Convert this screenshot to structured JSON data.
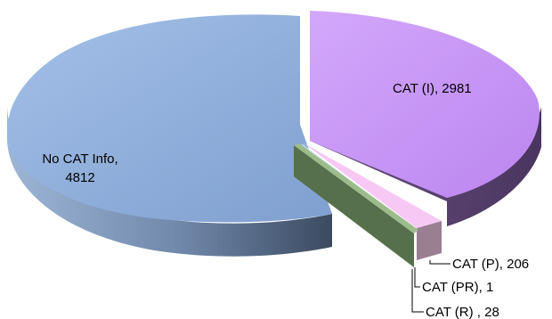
{
  "chart_data": {
    "type": "pie",
    "style": "3d-exploded",
    "title": "",
    "legend": "none",
    "slices": [
      {
        "label": "CAT (I)",
        "value": 2981,
        "color": "#c895f6",
        "label_text": "CAT (I), 2981"
      },
      {
        "label": "CAT (P)",
        "value": 206,
        "color": "#f9c6f7",
        "label_text": "CAT (P), 206"
      },
      {
        "label": "CAT (PR)",
        "value": 1,
        "color": "#bde0f0",
        "label_text": "CAT (PR), 1"
      },
      {
        "label": "CAT (R)",
        "value": 28,
        "color": "#8fae80",
        "label_text": "CAT (R) , 28"
      },
      {
        "label": "No CAT Info",
        "value": 4812,
        "color": "#8fb2e0",
        "label_line1": "No CAT Info,",
        "label_line2": "4812"
      }
    ]
  }
}
